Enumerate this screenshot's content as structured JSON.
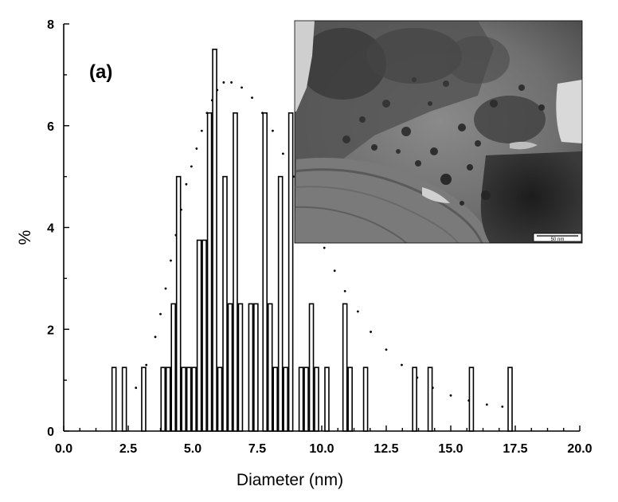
{
  "chart_data": {
    "type": "bar",
    "title": "",
    "panel_label": "(a)",
    "xlabel": "Diameter (nm)",
    "ylabel": "%",
    "xlim": [
      0,
      20
    ],
    "ylim": [
      0,
      8
    ],
    "xticks": [
      "0.0",
      "2.5",
      "5.0",
      "7.5",
      "10.0",
      "12.5",
      "15.0",
      "17.5",
      "20.0"
    ],
    "yticks": [
      "0",
      "2",
      "4",
      "6",
      "8"
    ],
    "bars": [
      {
        "x": 1.95,
        "y": 1.25
      },
      {
        "x": 2.35,
        "y": 1.25
      },
      {
        "x": 3.1,
        "y": 1.25
      },
      {
        "x": 3.85,
        "y": 1.25
      },
      {
        "x": 4.05,
        "y": 1.25
      },
      {
        "x": 4.25,
        "y": 2.5
      },
      {
        "x": 4.45,
        "y": 5.0
      },
      {
        "x": 4.65,
        "y": 1.25
      },
      {
        "x": 4.85,
        "y": 1.25
      },
      {
        "x": 5.05,
        "y": 1.25
      },
      {
        "x": 5.25,
        "y": 3.75
      },
      {
        "x": 5.45,
        "y": 3.75
      },
      {
        "x": 5.65,
        "y": 6.25
      },
      {
        "x": 5.85,
        "y": 7.5
      },
      {
        "x": 6.05,
        "y": 1.25
      },
      {
        "x": 6.25,
        "y": 5.0
      },
      {
        "x": 6.45,
        "y": 2.5
      },
      {
        "x": 6.65,
        "y": 6.25
      },
      {
        "x": 6.85,
        "y": 2.5
      },
      {
        "x": 7.25,
        "y": 2.5
      },
      {
        "x": 7.45,
        "y": 2.5
      },
      {
        "x": 7.8,
        "y": 6.25
      },
      {
        "x": 8.0,
        "y": 2.5
      },
      {
        "x": 8.2,
        "y": 1.25
      },
      {
        "x": 8.4,
        "y": 5.0
      },
      {
        "x": 8.6,
        "y": 1.25
      },
      {
        "x": 8.8,
        "y": 6.25
      },
      {
        "x": 9.2,
        "y": 1.25
      },
      {
        "x": 9.4,
        "y": 1.25
      },
      {
        "x": 9.6,
        "y": 2.5
      },
      {
        "x": 9.8,
        "y": 1.25
      },
      {
        "x": 10.2,
        "y": 1.25
      },
      {
        "x": 10.9,
        "y": 2.5
      },
      {
        "x": 11.1,
        "y": 1.25
      },
      {
        "x": 11.7,
        "y": 1.25
      },
      {
        "x": 13.6,
        "y": 1.25
      },
      {
        "x": 14.2,
        "y": 1.25
      },
      {
        "x": 15.8,
        "y": 1.25
      },
      {
        "x": 17.3,
        "y": 1.25
      }
    ],
    "fit_curve": {
      "style": "dotted",
      "x": [
        2.0,
        2.4,
        2.8,
        3.2,
        3.55,
        3.75,
        3.95,
        4.15,
        4.35,
        4.55,
        4.75,
        4.95,
        5.15,
        5.35,
        5.55,
        5.75,
        5.95,
        6.2,
        6.5,
        6.9,
        7.3,
        7.7,
        8.1,
        8.5,
        8.9,
        9.3,
        9.7,
        10.1,
        10.5,
        10.9,
        11.4,
        11.9,
        12.5,
        13.1,
        13.7,
        14.3,
        15.0,
        15.7,
        16.4,
        17.0
      ],
      "y": [
        0.45,
        0.6,
        0.85,
        1.3,
        1.85,
        2.3,
        2.8,
        3.35,
        3.85,
        4.35,
        4.85,
        5.2,
        5.55,
        5.9,
        6.25,
        6.5,
        6.7,
        6.85,
        6.85,
        6.75,
        6.55,
        6.25,
        5.9,
        5.45,
        5.0,
        4.5,
        4.05,
        3.6,
        3.15,
        2.75,
        2.35,
        1.95,
        1.6,
        1.3,
        1.05,
        0.85,
        0.7,
        0.6,
        0.52,
        0.48
      ]
    },
    "inset": {
      "scale_bar_label": "50 nm"
    }
  }
}
